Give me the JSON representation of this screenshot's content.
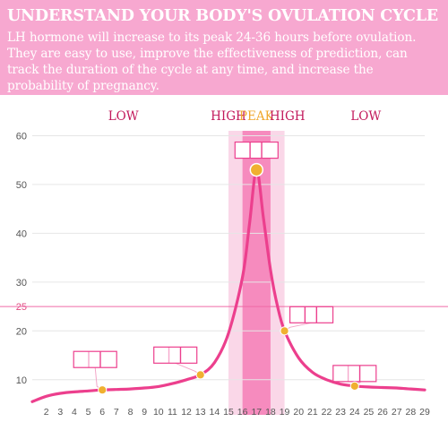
{
  "banner": {
    "title": "UNDERSTAND YOUR BODY'S OVULATION CYCLE",
    "body": "LH hormone will increase to its peak 24-36 hours before ovulation. They are easy to use, improve the effectiveness of prediction, can track the duration of the cycle at any time, and increase the probability of pregnancy."
  },
  "colors": {
    "banner": "#f7a8d0",
    "curve": "#ec3f8d",
    "phase_label": "#c2185b",
    "peak_label": "#f0a830",
    "marker": "#f0b030",
    "grid": "#e6e6e6",
    "axis_text": "#555555",
    "threshold_line": "#ef6aa6",
    "threshold_text": "#e0487f"
  },
  "chart_data": {
    "type": "line",
    "xlim": [
      1,
      29
    ],
    "ylim": [
      5,
      61
    ],
    "x_ticks": [
      2,
      3,
      4,
      5,
      6,
      7,
      8,
      9,
      10,
      11,
      12,
      13,
      14,
      15,
      16,
      17,
      18,
      19,
      20,
      21,
      22,
      23,
      24,
      25,
      26,
      27,
      28,
      29
    ],
    "y_ticks": [
      10,
      20,
      25,
      30,
      40,
      50,
      60
    ],
    "threshold": {
      "value": 25,
      "label": "25"
    },
    "phases": [
      {
        "label": "LOW",
        "center": 7.5
      },
      {
        "label": "HIGH",
        "center": 15.0
      },
      {
        "label": "PEAK",
        "center": 17.0,
        "peak": true
      },
      {
        "label": "HIGH",
        "center": 19.2
      },
      {
        "label": "LOW",
        "center": 24.8
      }
    ],
    "bands": [
      {
        "from": 15,
        "to": 19,
        "level": "high"
      },
      {
        "from": 16,
        "to": 18,
        "level": "peak"
      }
    ],
    "series": [
      {
        "x": [
          1,
          2,
          3,
          4,
          5,
          6,
          7,
          8,
          9,
          10,
          11,
          12,
          13,
          14,
          15,
          16,
          16.5,
          17,
          17.5,
          18,
          18.5,
          19,
          20,
          21,
          22,
          23,
          24,
          25,
          26,
          27,
          28,
          29
        ],
        "values": [
          5.5,
          6.6,
          7.2,
          7.5,
          7.7,
          7.9,
          8.0,
          8.1,
          8.3,
          8.6,
          9.2,
          10.0,
          11.0,
          13.5,
          19.5,
          31.0,
          42.0,
          53.0,
          43.0,
          32.5,
          25.0,
          20.0,
          14.5,
          11.5,
          10.0,
          9.1,
          8.7,
          8.5,
          8.4,
          8.3,
          8.1,
          7.9
        ]
      }
    ],
    "markers": [
      {
        "x": 6,
        "y": 7.9,
        "result": "low"
      },
      {
        "x": 13,
        "y": 11.0,
        "result": "low"
      },
      {
        "x": 17,
        "y": 53.0,
        "result": "peak"
      },
      {
        "x": 19,
        "y": 20.0,
        "result": "high"
      },
      {
        "x": 24,
        "y": 8.7,
        "result": "low"
      }
    ]
  }
}
